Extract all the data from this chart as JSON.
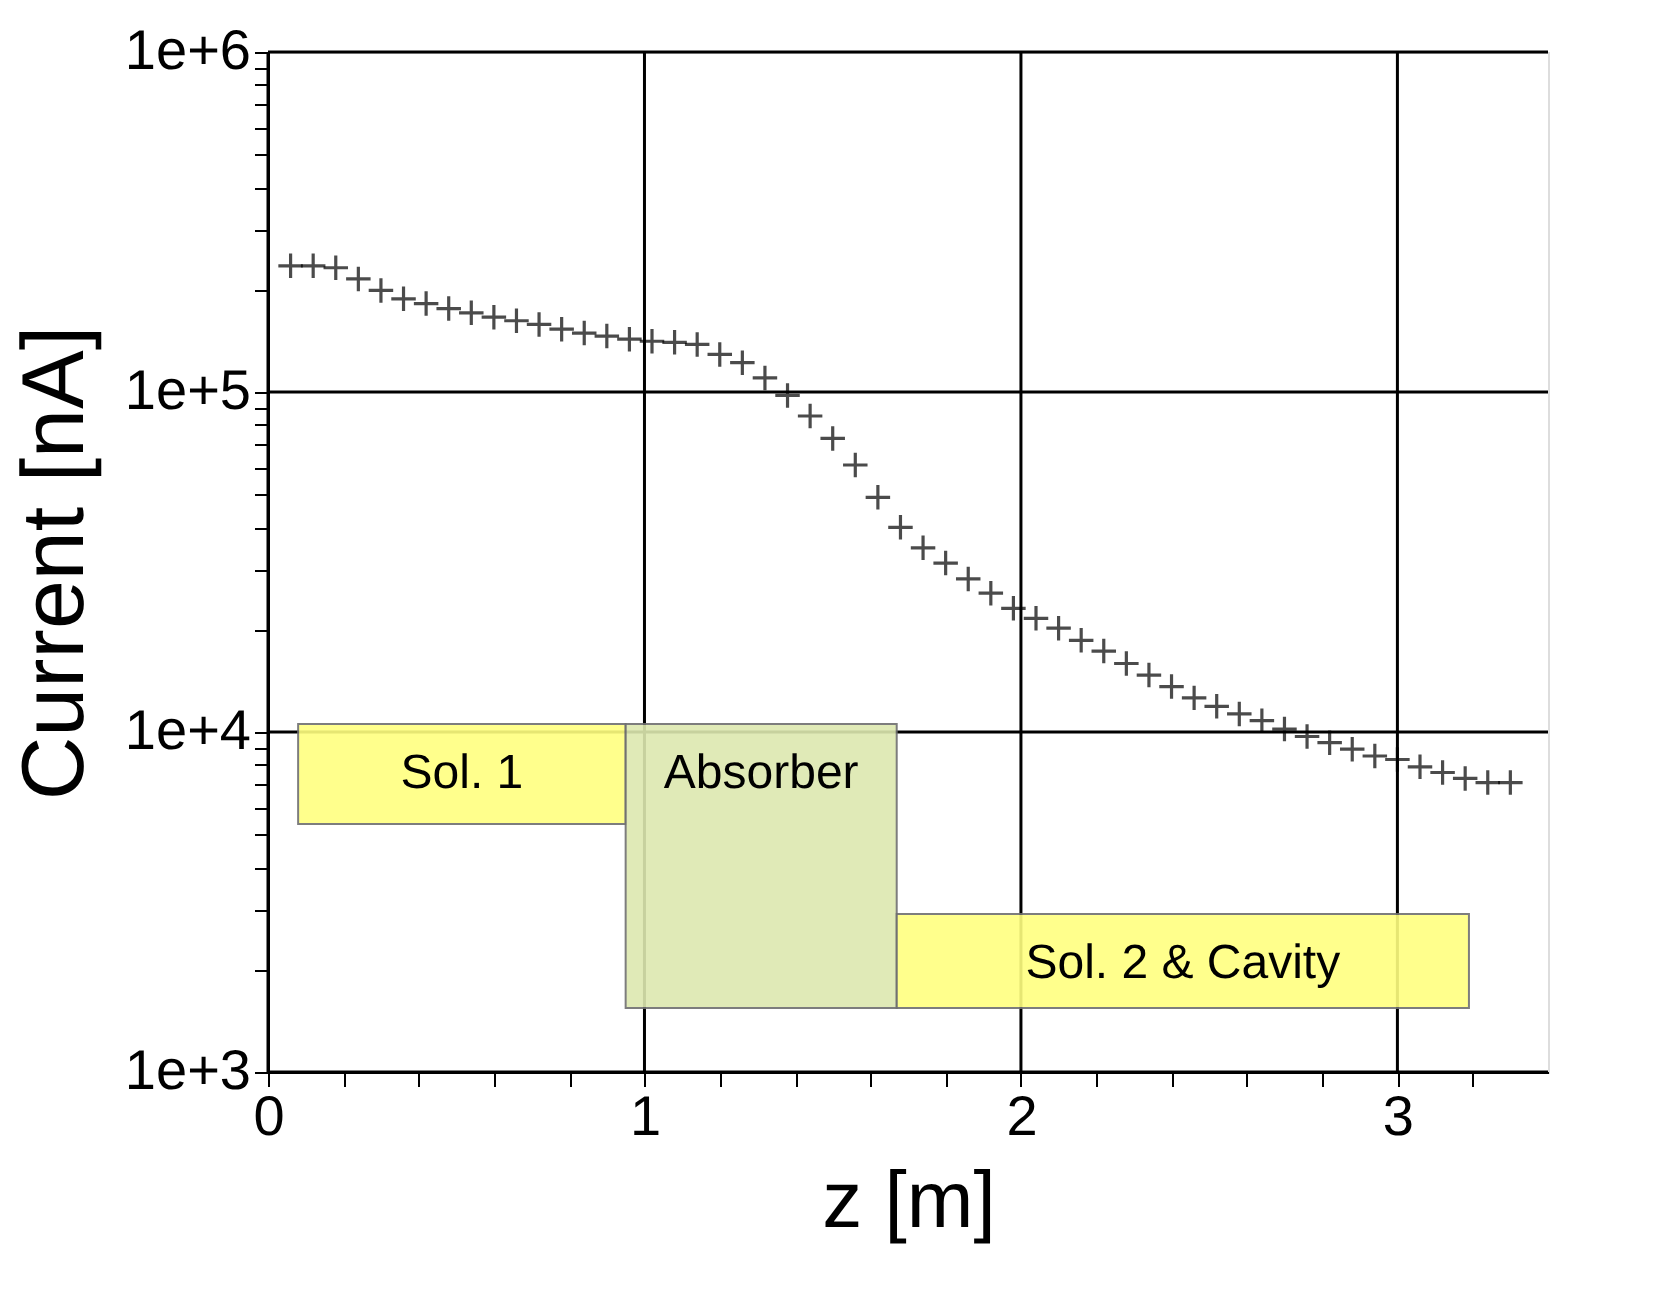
{
  "chart_data": {
    "type": "scatter",
    "xlabel": "z [m]",
    "ylabel": "Current [nA]",
    "log": "y",
    "grid": true,
    "marker": "cross",
    "xlim": [
      0,
      3.4
    ],
    "ylim": [
      1000,
      1000000
    ],
    "xticks": [
      0,
      {
        "value": 0.2,
        "label": null
      },
      {
        "value": 0.4,
        "label": null
      },
      {
        "value": 0.6,
        "label": null
      },
      {
        "value": 0.8,
        "label": null
      },
      1,
      {
        "value": 1.2,
        "label": null
      },
      {
        "value": 1.4,
        "label": null
      },
      {
        "value": 1.6,
        "label": null
      },
      {
        "value": 1.8,
        "label": null
      },
      2,
      {
        "value": 2.2,
        "label": null
      },
      {
        "value": 2.4,
        "label": null
      },
      {
        "value": 2.6,
        "label": null
      },
      {
        "value": 2.8,
        "label": null
      },
      3,
      {
        "value": 3.2,
        "label": null
      }
    ],
    "yticks": [
      {
        "value": 1000,
        "label": "1e+3"
      },
      {
        "value": 2000,
        "label": null
      },
      {
        "value": 3000,
        "label": null
      },
      {
        "value": 4000,
        "label": null
      },
      {
        "value": 5000,
        "label": null
      },
      {
        "value": 6000,
        "label": null
      },
      {
        "value": 7000,
        "label": null
      },
      {
        "value": 8000,
        "label": null
      },
      {
        "value": 9000,
        "label": null
      },
      {
        "value": 10000,
        "label": "1e+4"
      },
      {
        "value": 20000,
        "label": null
      },
      {
        "value": 30000,
        "label": null
      },
      {
        "value": 40000,
        "label": null
      },
      {
        "value": 50000,
        "label": null
      },
      {
        "value": 60000,
        "label": null
      },
      {
        "value": 70000,
        "label": null
      },
      {
        "value": 80000,
        "label": null
      },
      {
        "value": 90000,
        "label": null
      },
      {
        "value": 100000,
        "label": "1e+5"
      },
      {
        "value": 200000,
        "label": null
      },
      {
        "value": 300000,
        "label": null
      },
      {
        "value": 400000,
        "label": null
      },
      {
        "value": 500000,
        "label": null
      },
      {
        "value": 600000,
        "label": null
      },
      {
        "value": 700000,
        "label": null
      },
      {
        "value": 800000,
        "label": null
      },
      {
        "value": 900000,
        "label": null
      },
      {
        "value": 1000000,
        "label": "1e+6"
      }
    ],
    "x": [
      0.06,
      0.12,
      0.18,
      0.24,
      0.3,
      0.36,
      0.42,
      0.48,
      0.54,
      0.6,
      0.66,
      0.72,
      0.78,
      0.84,
      0.9,
      0.96,
      1.02,
      1.08,
      1.14,
      1.2,
      1.26,
      1.32,
      1.38,
      1.44,
      1.5,
      1.56,
      1.62,
      1.68,
      1.74,
      1.8,
      1.86,
      1.92,
      1.98,
      2.04,
      2.1,
      2.16,
      2.22,
      2.28,
      2.34,
      2.4,
      2.46,
      2.52,
      2.58,
      2.64,
      2.7,
      2.76,
      2.82,
      2.88,
      2.94,
      3.0,
      3.06,
      3.12,
      3.18,
      3.24,
      3.3
    ],
    "series": [
      {
        "color": "#000000",
        "values": [
          235000,
          235000,
          232000,
          215000,
          199000,
          188000,
          182000,
          176000,
          171000,
          166000,
          162000,
          158000,
          153000,
          149000,
          146000,
          143000,
          141000,
          140000,
          138000,
          129000,
          122000,
          110000,
          97700,
          85000,
          73000,
          61000,
          49000,
          40000,
          34800,
          31400,
          28200,
          25600,
          23100,
          21600,
          20200,
          18600,
          17300,
          15900,
          14700,
          13600,
          12600,
          11900,
          11300,
          10800,
          10200,
          9700,
          9300,
          8900,
          8500,
          8300,
          7900,
          7600,
          7300,
          7100,
          7100
        ]
      }
    ],
    "bands": [
      {
        "axis": "x",
        "from": 0.08,
        "to": 0.95,
        "label": "Sol. 1",
        "color": "#ffff80"
      },
      {
        "axis": "x",
        "from": 0.95,
        "to": 1.67,
        "label": "Absorber",
        "color": "#dde8b0"
      },
      {
        "axis": "x",
        "from": 1.67,
        "to": 3.19,
        "label": "Sol. 2 & Cavity",
        "color": "#ffff80"
      }
    ]
  }
}
